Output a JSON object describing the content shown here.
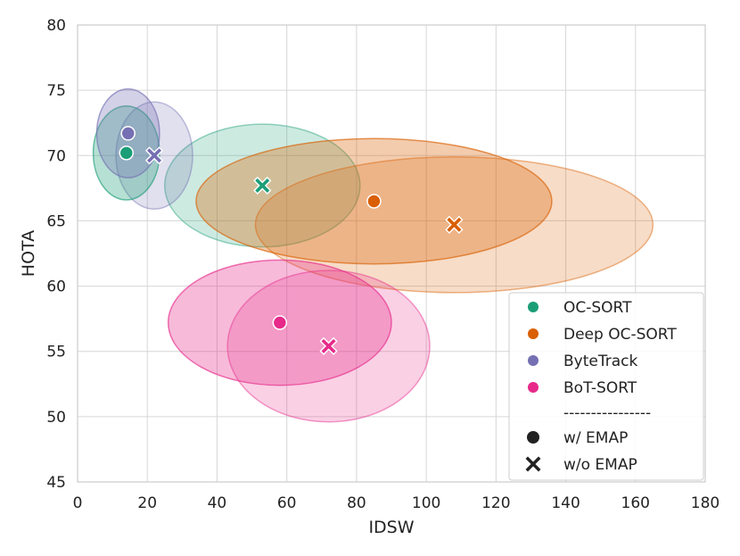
{
  "chart_data": {
    "type": "scatter",
    "title": "",
    "xlabel": "IDSW",
    "ylabel": "HOTA",
    "xlim": [
      0,
      180
    ],
    "ylim": [
      45,
      80
    ],
    "xticks": [
      0,
      20,
      40,
      60,
      80,
      100,
      120,
      140,
      160,
      180
    ],
    "yticks": [
      45,
      50,
      55,
      60,
      65,
      70,
      75,
      80
    ],
    "xtick_labels": [
      "0",
      "20",
      "40",
      "60",
      "80",
      "100",
      "120",
      "140",
      "160",
      "180"
    ],
    "ytick_labels": [
      "45",
      "50",
      "55",
      "60",
      "65",
      "70",
      "75",
      "80"
    ],
    "grid": true,
    "legend_position": "lower-right",
    "series": [
      {
        "name": "OC-SORT",
        "color": "#1b9e77",
        "with_emap": {
          "x": 14,
          "y": 70.2,
          "ellipse_rx": 9.5,
          "ellipse_ry": 3.6
        },
        "without_emap": {
          "x": 53,
          "y": 67.7,
          "ellipse_rx": 28,
          "ellipse_ry": 4.7
        }
      },
      {
        "name": "Deep OC-SORT",
        "color": "#d95f02",
        "with_emap": {
          "x": 85,
          "y": 66.5,
          "ellipse_rx": 51,
          "ellipse_ry": 4.8
        },
        "without_emap": {
          "x": 108,
          "y": 64.7,
          "ellipse_rx": 57,
          "ellipse_ry": 5.2
        }
      },
      {
        "name": "ByteTrack",
        "color": "#7570b3",
        "with_emap": {
          "x": 14.5,
          "y": 71.7,
          "ellipse_rx": 9,
          "ellipse_ry": 3.4
        },
        "without_emap": {
          "x": 22,
          "y": 70.0,
          "ellipse_rx": 11,
          "ellipse_ry": 4.1
        }
      },
      {
        "name": "BoT-SORT",
        "color": "#e7298a",
        "with_emap": {
          "x": 58,
          "y": 57.2,
          "ellipse_rx": 32,
          "ellipse_ry": 4.8
        },
        "without_emap": {
          "x": 72,
          "y": 55.4,
          "ellipse_rx": 29,
          "ellipse_ry": 5.8
        }
      }
    ],
    "legend": {
      "entries": [
        "OC-SORT",
        "Deep OC-SORT",
        "ByteTrack",
        "BoT-SORT"
      ],
      "separator": "----------------",
      "marker_with": "w/ EMAP",
      "marker_without": "w/o EMAP"
    }
  }
}
